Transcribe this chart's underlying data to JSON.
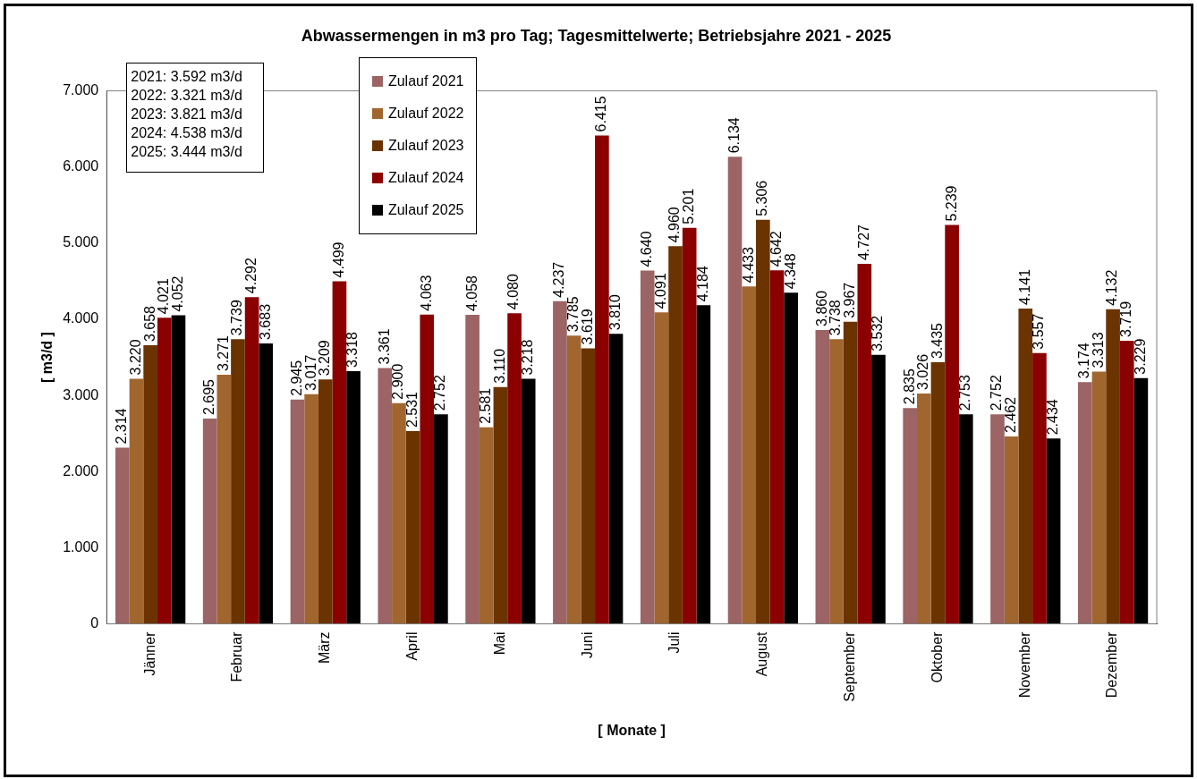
{
  "chart_data": {
    "type": "bar",
    "title": "Abwassermengen in m3 pro Tag; Tagesmittelwerte; Betriebsjahre 2021 - 2025",
    "xlabel": "[ Monate ]",
    "ylabel": "[ m3/d ]",
    "categories": [
      "Jänner",
      "Februar",
      "März",
      "April",
      "Mai",
      "Juni",
      "Juli",
      "August",
      "September",
      "Oktober",
      "November",
      "Dezember"
    ],
    "series": [
      {
        "name": "Zulauf 2021",
        "color": "#9c6464",
        "values": [
          2314,
          2695,
          2945,
          3361,
          4058,
          4237,
          4640,
          6134,
          3860,
          2835,
          2752,
          3174
        ],
        "value_labels": [
          "2.314",
          "2.695",
          "2.945",
          "3.361",
          "4.058",
          "4.237",
          "4.640",
          "6.134",
          "3.860",
          "2.835",
          "2.752",
          "3.174"
        ]
      },
      {
        "name": "Zulauf 2022",
        "color": "#a0662e",
        "values": [
          3220,
          3271,
          3017,
          2900,
          2581,
          3785,
          4091,
          4433,
          3738,
          3026,
          2462,
          3313
        ],
        "value_labels": [
          "3.220",
          "3.271",
          "3.017",
          "2.900",
          "2.581",
          "3.785",
          "4.091",
          "4.433",
          "3.738",
          "3.026",
          "2.462",
          "3.313"
        ]
      },
      {
        "name": "Zulauf 2023",
        "color": "#6b3300",
        "values": [
          3658,
          3739,
          3209,
          2531,
          3110,
          3619,
          4960,
          5306,
          3967,
          3435,
          4141,
          4132
        ],
        "value_labels": [
          "3.658",
          "3.739",
          "3.209",
          "2.531",
          "3.110",
          "3.619",
          "4.960",
          "5.306",
          "3.967",
          "3.435",
          "4.141",
          "4.132"
        ]
      },
      {
        "name": "Zulauf 2024",
        "color": "#8b0000",
        "values": [
          4021,
          4292,
          4499,
          4063,
          4080,
          6415,
          5201,
          4642,
          4727,
          5239,
          3557,
          3719
        ],
        "value_labels": [
          "4.021",
          "4.292",
          "4.499",
          "4.063",
          "4.080",
          "6.415",
          "5.201",
          "4.642",
          "4.727",
          "5.239",
          "3.557",
          "3.719"
        ]
      },
      {
        "name": "Zulauf 2025",
        "color": "#000000",
        "values": [
          4052,
          3683,
          3318,
          2752,
          3218,
          3810,
          4184,
          4348,
          3532,
          2753,
          2434,
          3229
        ],
        "value_labels": [
          "4.052",
          "3.683",
          "3.318",
          "2.752",
          "3.218",
          "3.810",
          "4.184",
          "4.348",
          "3.532",
          "2.753",
          "2.434",
          "3.229"
        ]
      }
    ],
    "ylim": [
      0,
      7000
    ],
    "yticks": [
      0,
      {
        "value": 1000,
        "label": "1.000"
      },
      {
        "value": 2000,
        "label": "2.000"
      },
      {
        "value": 3000,
        "label": "3.000"
      },
      {
        "value": 4000,
        "label": "4.000"
      },
      {
        "value": 5000,
        "label": "5.000"
      },
      {
        "value": 6000,
        "label": "6.000"
      },
      {
        "value": 7000,
        "label": "7.000"
      }
    ],
    "grid": false,
    "legend": "top",
    "annotations": [
      "2021: 3.592 m3/d",
      "2022: 3.321 m3/d",
      "2023: 3.821 m3/d",
      "2024: 4.538 m3/d",
      "2025: 3.444 m3/d"
    ]
  }
}
